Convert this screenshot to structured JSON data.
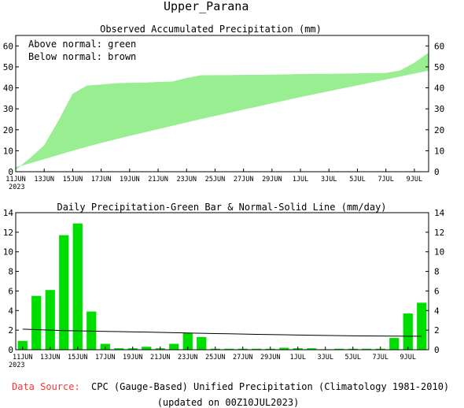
{
  "header": {
    "title": "Upper_Parana",
    "source_label": "Data Source:",
    "source_text": "CPC (Gauge-Based) Unified Precipitation (Climatology 1981-2010)",
    "updated_text": "(updated on 00Z10JUL2023)"
  },
  "colors": {
    "green_fill": "#98ee90",
    "green_bar": "#00dd00",
    "source_label": "#ff3333"
  },
  "chart_data": [
    {
      "type": "area",
      "title": "Observed Accumulated Precipitation (mm)",
      "annotations": [
        "Above normal: green",
        "Below normal: brown"
      ],
      "x": [
        "11JUN",
        "12JUN",
        "13JUN",
        "14JUN",
        "15JUN",
        "16JUN",
        "17JUN",
        "18JUN",
        "19JUN",
        "20JUN",
        "21JUN",
        "22JUN",
        "23JUN",
        "24JUN",
        "25JUN",
        "26JUN",
        "27JUN",
        "28JUN",
        "29JUN",
        "30JUN",
        "1JUL",
        "2JUL",
        "3JUL",
        "4JUL",
        "5JUL",
        "6JUL",
        "7JUL",
        "8JUL",
        "9JUL",
        "10JUL"
      ],
      "x_tick_labels": [
        "11JUN",
        "13JUN",
        "15JUN",
        "17JUN",
        "19JUN",
        "21JUN",
        "23JUN",
        "25JUN",
        "27JUN",
        "29JUN",
        "1JUL",
        "3JUL",
        "5JUL",
        "7JUL",
        "9JUL"
      ],
      "x_year_label": "2023",
      "series": [
        {
          "role": "observed",
          "values": [
            0.9,
            6.4,
            12.5,
            24.2,
            37.1,
            41.0,
            41.5,
            42.1,
            42.3,
            42.4,
            42.7,
            42.9,
            44.6,
            45.9,
            46.0,
            46.0,
            46.1,
            46.1,
            46.2,
            46.3,
            46.5,
            46.6,
            46.6,
            46.7,
            46.8,
            46.9,
            47.0,
            48.2,
            51.9,
            56.7
          ]
        },
        {
          "role": "normal",
          "values": [
            2.1,
            4.1,
            6.1,
            8.1,
            10.1,
            12.0,
            13.8,
            15.5,
            17.2,
            18.8,
            20.4,
            22.0,
            23.6,
            25.2,
            26.7,
            28.2,
            29.7,
            31.2,
            32.7,
            34.2,
            35.7,
            37.1,
            38.5,
            39.9,
            41.3,
            42.7,
            44.1,
            45.5,
            46.9,
            48.3
          ]
        }
      ],
      "ylim": [
        0,
        65
      ],
      "y_ticks": [
        0,
        10,
        20,
        30,
        40,
        50,
        60
      ],
      "grid": false
    },
    {
      "type": "bar",
      "title": "Daily Precipitation-Green Bar & Normal-Solid Line (mm/day)",
      "x": [
        "11JUN",
        "12JUN",
        "13JUN",
        "14JUN",
        "15JUN",
        "16JUN",
        "17JUN",
        "18JUN",
        "19JUN",
        "20JUN",
        "21JUN",
        "22JUN",
        "23JUN",
        "24JUN",
        "25JUN",
        "26JUN",
        "27JUN",
        "28JUN",
        "29JUN",
        "30JUN",
        "1JUL",
        "2JUL",
        "3JUL",
        "4JUL",
        "5JUL",
        "6JUL",
        "7JUL",
        "8JUL",
        "9JUL",
        "10JUL"
      ],
      "x_tick_labels": [
        "11JUN",
        "13JUN",
        "15JUN",
        "17JUN",
        "19JUN",
        "21JUN",
        "23JUN",
        "25JUN",
        "27JUN",
        "29JUN",
        "1JUL",
        "3JUL",
        "5JUL",
        "7JUL",
        "9JUL"
      ],
      "x_year_label": "2023",
      "series": [
        {
          "role": "daily",
          "values": [
            0.9,
            5.5,
            6.1,
            11.7,
            12.9,
            3.9,
            0.6,
            0.15,
            0.15,
            0.3,
            0.15,
            0.6,
            1.7,
            1.3,
            0.1,
            0.1,
            0.1,
            0.1,
            0.1,
            0.2,
            0.15,
            0.15,
            0.05,
            0.1,
            0.1,
            0.1,
            0.1,
            1.2,
            3.7,
            4.8
          ]
        },
        {
          "role": "normal",
          "values": [
            2.1,
            2.05,
            2.0,
            1.95,
            1.93,
            1.9,
            1.87,
            1.85,
            1.82,
            1.8,
            1.77,
            1.74,
            1.71,
            1.68,
            1.65,
            1.63,
            1.6,
            1.57,
            1.55,
            1.53,
            1.5,
            1.48,
            1.46,
            1.44,
            1.42,
            1.41,
            1.4,
            1.39,
            1.38,
            1.38
          ]
        }
      ],
      "ylim": [
        0,
        14
      ],
      "y_ticks": [
        0,
        2,
        4,
        6,
        8,
        10,
        12,
        14
      ],
      "grid": false
    }
  ]
}
